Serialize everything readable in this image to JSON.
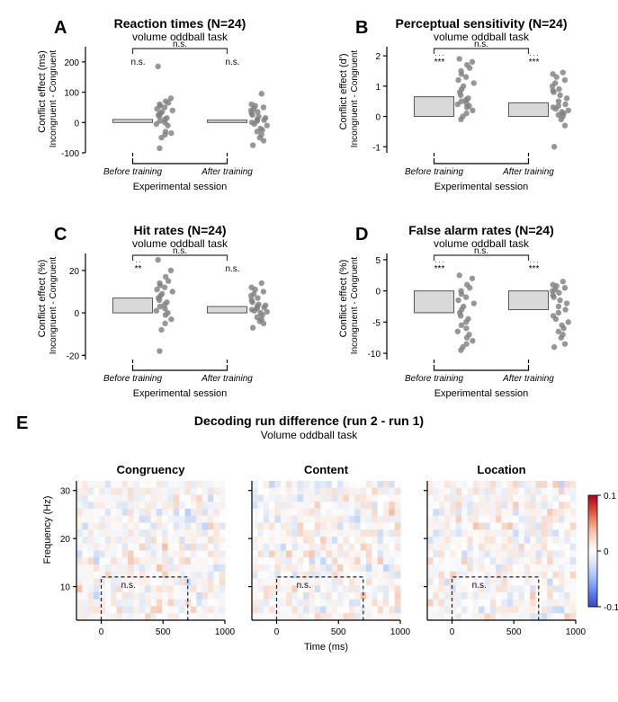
{
  "font_family": "Helvetica Neue, Helvetica, Arial, sans-serif",
  "colors": {
    "background": "#ffffff",
    "axis": "#000000",
    "bar_fill": "#d9d9d9",
    "bar_stroke": "#555555",
    "dot_fill": "#808080",
    "dash_box": "#222222",
    "bracket": "#333333",
    "colorbar": [
      "#3b4cc0",
      "#5a78e4",
      "#84a7fb",
      "#b5ccfb",
      "#e2e8f3",
      "#fefefe",
      "#f7dfd4",
      "#f5b79b",
      "#e6805e",
      "#cb3e33",
      "#b40426"
    ]
  },
  "panelA": {
    "letter": "A",
    "title": "Reaction times (N=24)",
    "subtitle": "volume oddball task",
    "y_major": "Conflict effect (ms)",
    "y_minor": "Incongruent - Congruent",
    "x_label": "Experimental session",
    "categories": [
      "Before training",
      "After training"
    ],
    "bar_values": [
      10,
      8
    ],
    "ylim": [
      -100,
      250
    ],
    "yticks": [
      -100,
      0,
      100,
      200
    ],
    "sig_above_bars": [
      "n.s.",
      "n.s."
    ],
    "sig_bracket": "n.s.",
    "points": {
      "Before training": [
        -85,
        -50,
        -40,
        -35,
        -30,
        -10,
        -5,
        0,
        5,
        10,
        15,
        20,
        25,
        30,
        35,
        40,
        45,
        50,
        55,
        60,
        65,
        70,
        80,
        185
      ],
      "After training": [
        -75,
        -60,
        -50,
        -40,
        -30,
        -25,
        -20,
        -10,
        -5,
        0,
        5,
        8,
        10,
        15,
        20,
        25,
        30,
        35,
        40,
        45,
        50,
        55,
        60,
        95
      ]
    }
  },
  "panelB": {
    "letter": "B",
    "title": "Perceptual sensitivity (N=24)",
    "subtitle": "volume oddball task",
    "y_major": "Conflict effect (d')",
    "y_minor": "Incongruent - Congruent",
    "x_label": "Experimental session",
    "categories": [
      "Before training",
      "After training"
    ],
    "bar_values": [
      0.65,
      0.45
    ],
    "ylim": [
      -1.2,
      2.3
    ],
    "yticks": [
      -1,
      0,
      1,
      2
    ],
    "sig_above_bars": [
      "***",
      "***"
    ],
    "sig_bracket": "n.s.",
    "points": {
      "Before training": [
        -0.1,
        0.0,
        0.1,
        0.2,
        0.3,
        0.35,
        0.4,
        0.45,
        0.5,
        0.55,
        0.6,
        0.7,
        0.8,
        0.9,
        1.0,
        1.1,
        1.2,
        1.3,
        1.4,
        1.5,
        1.6,
        1.7,
        1.8,
        1.9
      ],
      "After training": [
        -1.0,
        -0.3,
        -0.1,
        0.0,
        0.05,
        0.1,
        0.15,
        0.2,
        0.25,
        0.3,
        0.35,
        0.4,
        0.5,
        0.6,
        0.7,
        0.8,
        0.85,
        0.9,
        1.0,
        1.1,
        1.2,
        1.3,
        1.4,
        1.45
      ]
    }
  },
  "panelC": {
    "letter": "C",
    "title": "Hit rates (N=24)",
    "subtitle": "volume oddball task",
    "y_major": "Conflict effect (%)",
    "y_minor": "Incongruent - Congruent",
    "x_label": "Experimental session",
    "categories": [
      "Before training",
      "After training"
    ],
    "bar_values": [
      7,
      3
    ],
    "ylim": [
      -22,
      28
    ],
    "yticks": [
      -20,
      0,
      20
    ],
    "sig_above_bars": [
      "**",
      "n.s."
    ],
    "sig_bracket": "n.s.",
    "points": {
      "Before training": [
        -18,
        -8,
        -5,
        -3,
        -1,
        0,
        1,
        2,
        3,
        4,
        5,
        6,
        7,
        8,
        9,
        10,
        11,
        12,
        13,
        14,
        15,
        17,
        20,
        25
      ],
      "After training": [
        -7,
        -5,
        -4,
        -3,
        -2,
        -1,
        0,
        0.5,
        1,
        1.5,
        2,
        2.5,
        3,
        3.5,
        4,
        5,
        6,
        7,
        8,
        9,
        10,
        11,
        12,
        14
      ]
    }
  },
  "panelD": {
    "letter": "D",
    "title": "False alarm rates (N=24)",
    "subtitle": "volume oddball task",
    "y_major": "Conflict effect (%)",
    "y_minor": "Incongruent - Congruent",
    "x_label": "Experimental session",
    "categories": [
      "Before training",
      "After training"
    ],
    "bar_values": [
      -3.5,
      -3.0
    ],
    "ylim": [
      -11,
      6
    ],
    "yticks": [
      -10,
      -5,
      0,
      5
    ],
    "sig_above_bars": [
      "***",
      "***"
    ],
    "sig_bracket": "n.s.",
    "points": {
      "Before training": [
        -9.5,
        -9,
        -8.5,
        -8,
        -7.5,
        -7,
        -6.5,
        -6,
        -5.5,
        -5,
        -4.5,
        -4,
        -3.5,
        -3,
        -2.5,
        -2,
        -1.5,
        -1,
        -0.5,
        0,
        0.5,
        1,
        2,
        2.5
      ],
      "After training": [
        -9.0,
        -8.5,
        -7.5,
        -7,
        -6.5,
        -6,
        -5.5,
        -5,
        -4.5,
        -4,
        -3.5,
        -3,
        -2.5,
        -2,
        -1.5,
        -1,
        -0.7,
        -0.3,
        0,
        0.2,
        0.5,
        0.8,
        1,
        1.5
      ]
    }
  },
  "panelE": {
    "letter": "E",
    "title": "Decoding run difference (run 2 - run 1)",
    "subtitle": "Volume oddball task",
    "y_label": "Frequency (Hz)",
    "x_label": "Time (ms)",
    "ylim": [
      3,
      32
    ],
    "yticks": [
      10,
      20,
      30
    ],
    "xlim": [
      -200,
      1000
    ],
    "xticks": [
      0,
      500,
      1000
    ],
    "clim": [
      -0.1,
      0.1
    ],
    "cticks": [
      -0.1,
      0,
      0.1
    ],
    "n_time": 26,
    "n_freq": 20,
    "map_titles": [
      "Congruency",
      "Content",
      "Location"
    ],
    "sig_in_box": "n.s.",
    "box_time": [
      0,
      700
    ],
    "box_freq": [
      3,
      12
    ],
    "seeds": [
      11,
      22,
      33
    ]
  }
}
